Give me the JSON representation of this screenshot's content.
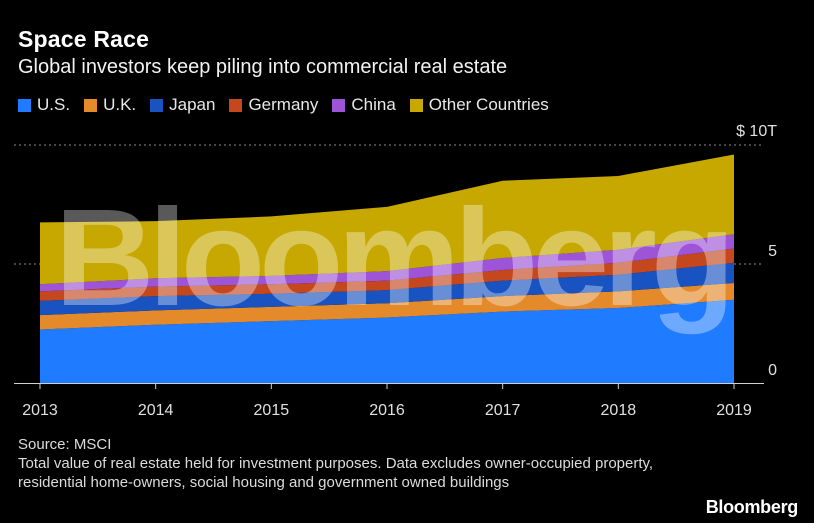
{
  "title": "Space Race",
  "subtitle": "Global investors keep piling into commercial real estate",
  "source_label": "Source: MSCI",
  "note": "Total value of real estate held for investment purposes. Data excludes owner-occupied property, residential home-owners, social housing and government owned buildings",
  "brand": "Bloomberg",
  "watermark": "Bloomberg",
  "chart_data": {
    "type": "area",
    "stacked": true,
    "x": [
      "2013",
      "2014",
      "2015",
      "2016",
      "2017",
      "2018",
      "2019"
    ],
    "series": [
      {
        "name": "U.S.",
        "color": "#1f7bff",
        "values": [
          2.25,
          2.45,
          2.6,
          2.75,
          3.0,
          3.15,
          3.5
        ]
      },
      {
        "name": "U.K.",
        "color": "#e48a2a",
        "values": [
          0.6,
          0.6,
          0.6,
          0.6,
          0.65,
          0.7,
          0.7
        ]
      },
      {
        "name": "Japan",
        "color": "#1853c1",
        "values": [
          0.6,
          0.6,
          0.55,
          0.55,
          0.65,
          0.7,
          0.85
        ]
      },
      {
        "name": "Germany",
        "color": "#c4471e",
        "values": [
          0.4,
          0.4,
          0.4,
          0.4,
          0.45,
          0.5,
          0.6
        ]
      },
      {
        "name": "China",
        "color": "#9d54d6",
        "values": [
          0.3,
          0.35,
          0.35,
          0.4,
          0.5,
          0.55,
          0.6
        ]
      },
      {
        "name": "Other Countries",
        "color": "#c6a800",
        "values": [
          2.6,
          2.4,
          2.5,
          2.7,
          3.25,
          3.1,
          3.35
        ]
      }
    ],
    "ylim": [
      0,
      10
    ],
    "y_ticks": [
      0,
      5,
      10
    ],
    "y_tick_labels": [
      "0",
      "5",
      "$ 10T"
    ],
    "axis_position": "right",
    "grid": "dotted"
  }
}
